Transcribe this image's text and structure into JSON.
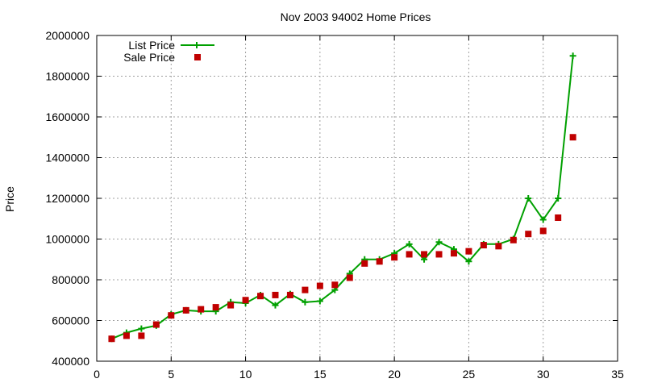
{
  "chart_data": {
    "type": "line",
    "title": "Nov 2003 94002 Home Prices",
    "xlabel": "",
    "ylabel": "Price",
    "xlim": [
      0,
      35
    ],
    "ylim": [
      400000,
      2000000
    ],
    "xticks": [
      0,
      5,
      10,
      15,
      20,
      25,
      30,
      35
    ],
    "yticks": [
      400000,
      600000,
      800000,
      1000000,
      1200000,
      1400000,
      1600000,
      1800000,
      2000000
    ],
    "grid": true,
    "legend_position": "top-left",
    "x": [
      1,
      2,
      3,
      4,
      5,
      6,
      7,
      8,
      9,
      10,
      11,
      12,
      13,
      14,
      15,
      16,
      17,
      18,
      19,
      20,
      21,
      22,
      23,
      24,
      25,
      26,
      27,
      28,
      29,
      30,
      31,
      32
    ],
    "series": [
      {
        "name": "List Price",
        "style": "line-plus",
        "color": "#00a000",
        "values": [
          510000,
          540000,
          560000,
          575000,
          630000,
          650000,
          645000,
          645000,
          690000,
          685000,
          725000,
          675000,
          730000,
          690000,
          695000,
          750000,
          830000,
          900000,
          900000,
          930000,
          975000,
          900000,
          985000,
          950000,
          890000,
          975000,
          975000,
          1000000,
          1200000,
          1095000,
          1200000,
          1900000
        ]
      },
      {
        "name": "Sale Price",
        "style": "square",
        "color": "#c00000",
        "values": [
          510000,
          525000,
          525000,
          580000,
          625000,
          650000,
          655000,
          665000,
          675000,
          700000,
          720000,
          725000,
          725000,
          750000,
          770000,
          775000,
          810000,
          880000,
          890000,
          910000,
          925000,
          925000,
          925000,
          930000,
          940000,
          970000,
          965000,
          995000,
          1025000,
          1040000,
          1105000,
          1500000
        ]
      }
    ]
  }
}
